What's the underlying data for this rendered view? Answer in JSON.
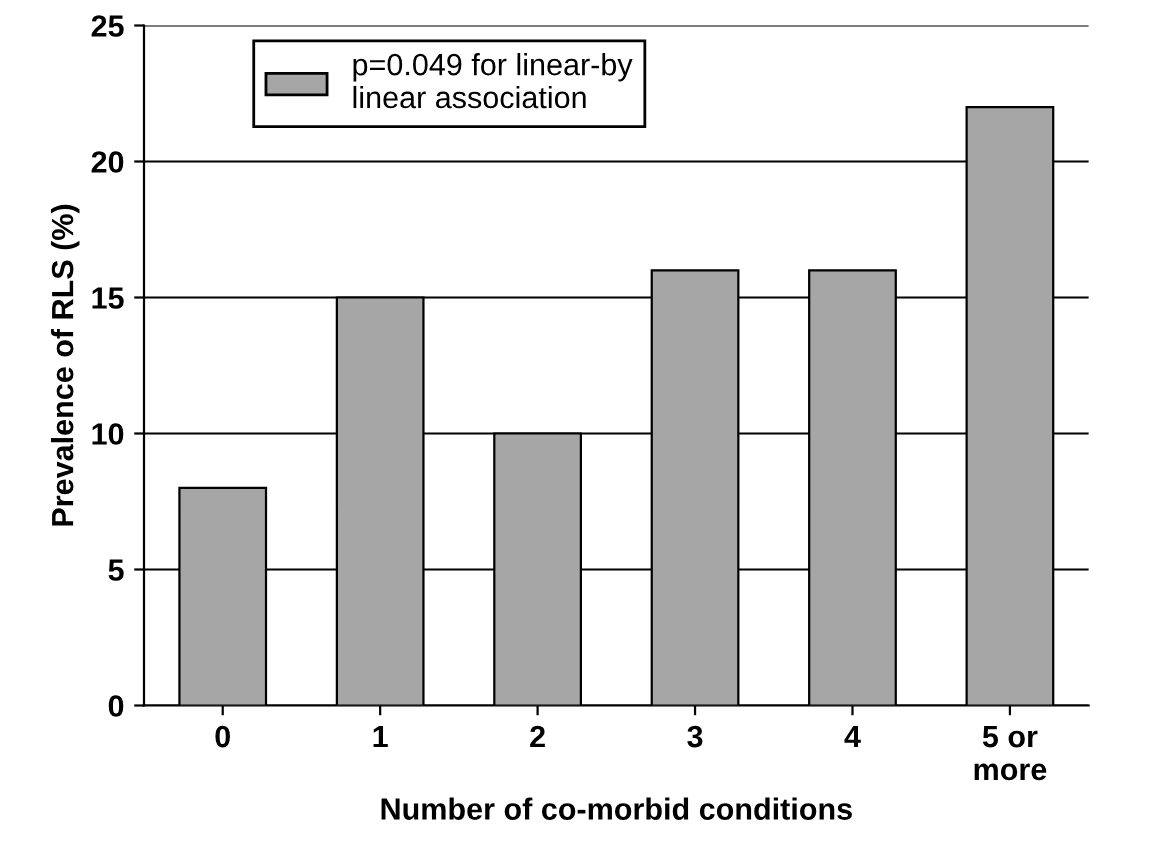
{
  "chart_data": {
    "type": "bar",
    "xlabel": "Number of co-morbid conditions",
    "ylabel": "Prevalence of RLS (%)",
    "categories": [
      "0",
      "1",
      "2",
      "3",
      "4",
      "5 or\nmore"
    ],
    "series": [
      {
        "name": "p=0.049 for linear-by\nlinear association",
        "color": "#a6a6a6",
        "values": [
          8,
          15,
          10,
          16,
          16,
          22
        ]
      }
    ],
    "ylim": [
      0,
      25
    ],
    "yticks": [
      0,
      5,
      10,
      15,
      20,
      25
    ],
    "grid": "y",
    "legend": "top left"
  }
}
